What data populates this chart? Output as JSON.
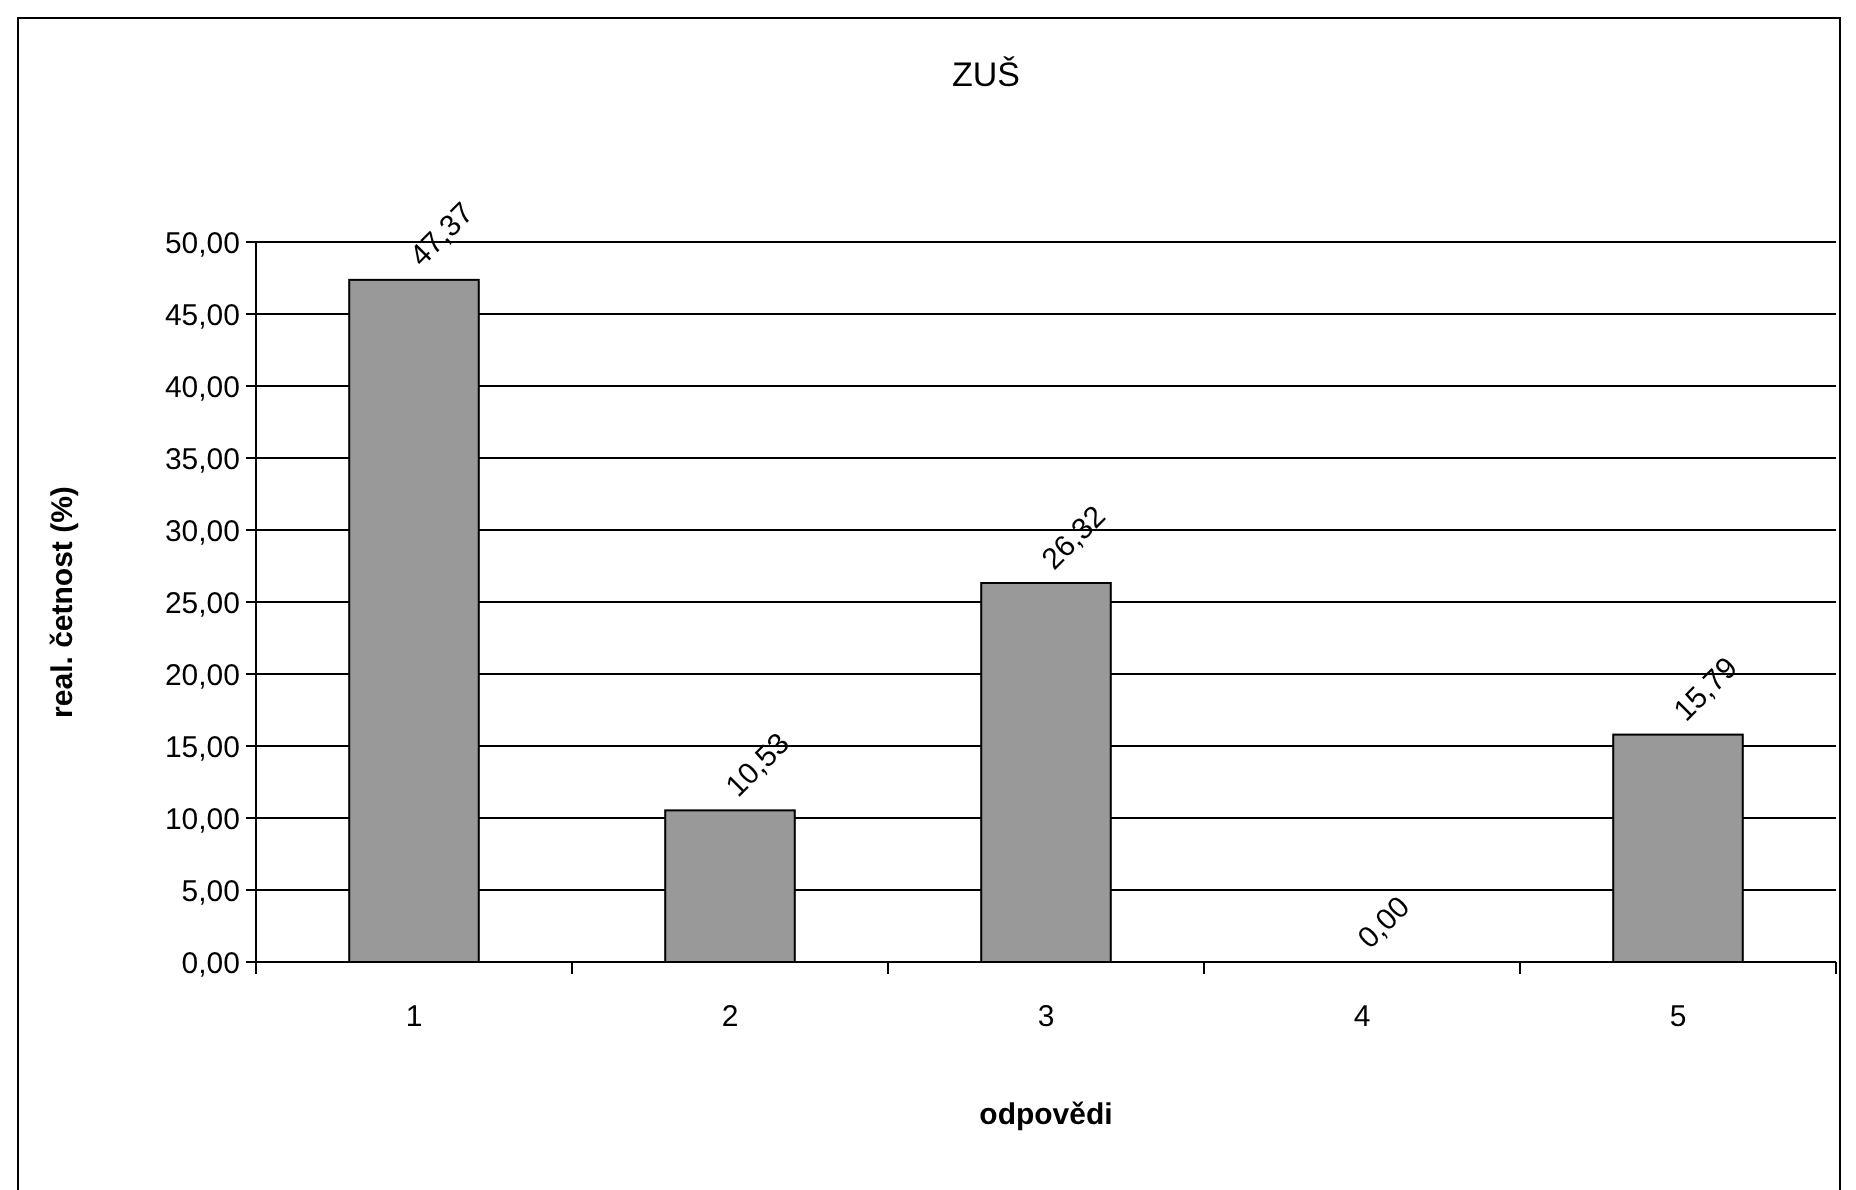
{
  "chart_data": {
    "type": "bar",
    "title": "ZUŠ",
    "xlabel": "odpovědi",
    "ylabel": "real. četnost (%)",
    "categories": [
      "1",
      "2",
      "3",
      "4",
      "5"
    ],
    "values": [
      47.37,
      10.53,
      26.32,
      0.0,
      15.79
    ],
    "value_labels": [
      "47,37",
      "10,53",
      "26,32",
      "0,00",
      "15,79"
    ],
    "color": "#999999",
    "ylim": [
      0,
      50
    ],
    "yticks": [
      {
        "value": 0,
        "label": "0,00"
      },
      {
        "value": 5,
        "label": "5,00"
      },
      {
        "value": 10,
        "label": "10,00"
      },
      {
        "value": 15,
        "label": "15,00"
      },
      {
        "value": 20,
        "label": "20,00"
      },
      {
        "value": 25,
        "label": "25,00"
      },
      {
        "value": 30,
        "label": "30,00"
      },
      {
        "value": 35,
        "label": "35,00"
      },
      {
        "value": 40,
        "label": "40,00"
      },
      {
        "value": 45,
        "label": "45,00"
      },
      {
        "value": 50,
        "label": "50,00"
      }
    ],
    "grid": "y"
  }
}
